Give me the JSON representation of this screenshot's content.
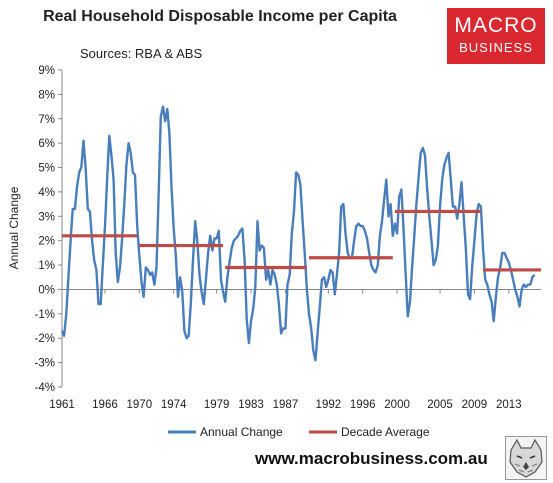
{
  "header": {
    "title": "Real Household Disposable Income per Capita",
    "subtitle": "Sources: RBA & ABS"
  },
  "logo": {
    "line1": "MACRO",
    "line2": "BUSINESS"
  },
  "footer": {
    "website": "www.macrobusiness.com.au"
  },
  "colors": {
    "line": "#4a7ebb",
    "average": "#be4b48",
    "logo_bg": "#d9282f"
  },
  "chart_data": {
    "type": "line",
    "title": "Real Household Disposable Income per Capita",
    "subtitle": "Sources: RBA & ABS",
    "xlabel": "",
    "ylabel": "Annual Change",
    "xlim": [
      1961,
      2016.75
    ],
    "ylim": [
      -4,
      9
    ],
    "y_ticks": [
      "-4%",
      "-3%",
      "-2%",
      "-1%",
      "0%",
      "1%",
      "2%",
      "3%",
      "4%",
      "5%",
      "6%",
      "7%",
      "8%",
      "9%"
    ],
    "y_tick_values": [
      -4,
      -3,
      -2,
      -1,
      0,
      1,
      2,
      3,
      4,
      5,
      6,
      7,
      8,
      9
    ],
    "x_ticks": [
      "1961",
      "1966",
      "1970",
      "1974",
      "1979",
      "1983",
      "1987",
      "1992",
      "1996",
      "2000",
      "2005",
      "2009",
      "2013"
    ],
    "x_tick_values": [
      1961,
      1966,
      1970,
      1974,
      1979,
      1983,
      1987,
      1992,
      1996,
      2000,
      2005,
      2009,
      2013
    ],
    "legend_position": "bottom",
    "grid": false,
    "series": [
      {
        "name": "Annual Change",
        "points": [
          [
            1961.0,
            -1.7
          ],
          [
            1961.25,
            -1.9
          ],
          [
            1961.5,
            -1.0
          ],
          [
            1961.75,
            0.5
          ],
          [
            1962.0,
            2.0
          ],
          [
            1962.25,
            3.3
          ],
          [
            1962.5,
            3.3
          ],
          [
            1962.75,
            4.2
          ],
          [
            1963.0,
            4.8
          ],
          [
            1963.25,
            5.0
          ],
          [
            1963.5,
            6.1
          ],
          [
            1963.75,
            5.0
          ],
          [
            1964.0,
            3.3
          ],
          [
            1964.25,
            3.2
          ],
          [
            1964.5,
            2.0
          ],
          [
            1964.75,
            1.2
          ],
          [
            1965.0,
            0.8
          ],
          [
            1965.25,
            -0.6
          ],
          [
            1965.5,
            -0.6
          ],
          [
            1965.75,
            1.0
          ],
          [
            1966.0,
            2.6
          ],
          [
            1966.25,
            4.5
          ],
          [
            1966.5,
            6.3
          ],
          [
            1966.75,
            5.5
          ],
          [
            1967.0,
            4.5
          ],
          [
            1967.25,
            1.5
          ],
          [
            1967.5,
            0.3
          ],
          [
            1967.75,
            0.9
          ],
          [
            1968.0,
            2.1
          ],
          [
            1968.25,
            3.5
          ],
          [
            1968.5,
            5.1
          ],
          [
            1968.75,
            6.0
          ],
          [
            1969.0,
            5.6
          ],
          [
            1969.25,
            4.8
          ],
          [
            1969.5,
            4.7
          ],
          [
            1969.75,
            2.6
          ],
          [
            1970.0,
            1.4
          ],
          [
            1970.25,
            0.3
          ],
          [
            1970.5,
            -0.3
          ],
          [
            1970.75,
            0.9
          ],
          [
            1971.0,
            0.8
          ],
          [
            1971.25,
            0.6
          ],
          [
            1971.5,
            0.7
          ],
          [
            1971.75,
            0.2
          ],
          [
            1972.0,
            0.9
          ],
          [
            1972.25,
            4.0
          ],
          [
            1972.5,
            7.1
          ],
          [
            1972.75,
            7.5
          ],
          [
            1973.0,
            6.9
          ],
          [
            1973.25,
            7.4
          ],
          [
            1973.5,
            6.4
          ],
          [
            1973.75,
            4.2
          ],
          [
            1974.0,
            2.5
          ],
          [
            1974.25,
            1.4
          ],
          [
            1974.5,
            -0.3
          ],
          [
            1974.75,
            0.5
          ],
          [
            1975.0,
            -0.1
          ],
          [
            1975.25,
            -1.7
          ],
          [
            1975.5,
            -2.0
          ],
          [
            1975.75,
            -1.9
          ],
          [
            1976.0,
            -0.5
          ],
          [
            1976.25,
            1.2
          ],
          [
            1976.5,
            2.8
          ],
          [
            1976.75,
            2.0
          ],
          [
            1977.0,
            0.6
          ],
          [
            1977.25,
            -0.1
          ],
          [
            1977.5,
            -0.6
          ],
          [
            1977.75,
            0.4
          ],
          [
            1978.0,
            1.5
          ],
          [
            1978.25,
            2.2
          ],
          [
            1978.5,
            1.6
          ],
          [
            1978.75,
            2.1
          ],
          [
            1979.0,
            2.1
          ],
          [
            1979.25,
            2.4
          ],
          [
            1979.5,
            0.4
          ],
          [
            1979.75,
            -0.1
          ],
          [
            1980.0,
            -0.5
          ],
          [
            1980.25,
            0.5
          ],
          [
            1980.5,
            1.1
          ],
          [
            1980.75,
            1.7
          ],
          [
            1981.0,
            2.0
          ],
          [
            1981.25,
            2.1
          ],
          [
            1981.5,
            2.2
          ],
          [
            1981.75,
            2.4
          ],
          [
            1982.0,
            2.5
          ],
          [
            1982.25,
            1.2
          ],
          [
            1982.5,
            -1.2
          ],
          [
            1982.75,
            -2.2
          ],
          [
            1983.0,
            -1.3
          ],
          [
            1983.25,
            -0.8
          ],
          [
            1983.5,
            0.1
          ],
          [
            1983.75,
            2.8
          ],
          [
            1984.0,
            1.6
          ],
          [
            1984.25,
            1.8
          ],
          [
            1984.5,
            1.7
          ],
          [
            1984.75,
            0.4
          ],
          [
            1985.0,
            0.8
          ],
          [
            1985.25,
            0.2
          ],
          [
            1985.5,
            0.8
          ],
          [
            1985.75,
            0.6
          ],
          [
            1986.0,
            0.2
          ],
          [
            1986.25,
            -0.6
          ],
          [
            1986.5,
            -1.8
          ],
          [
            1986.75,
            -1.6
          ],
          [
            1987.0,
            -1.6
          ],
          [
            1987.25,
            0.2
          ],
          [
            1987.5,
            0.6
          ],
          [
            1987.75,
            2.3
          ],
          [
            1988.0,
            3.2
          ],
          [
            1988.25,
            4.8
          ],
          [
            1988.5,
            4.7
          ],
          [
            1988.75,
            4.3
          ],
          [
            1989.0,
            2.8
          ],
          [
            1989.25,
            1.5
          ],
          [
            1989.5,
            0.0
          ],
          [
            1989.75,
            -1.0
          ],
          [
            1990.0,
            -1.6
          ],
          [
            1990.25,
            -2.5
          ],
          [
            1990.5,
            -2.9
          ],
          [
            1990.75,
            -1.8
          ],
          [
            1991.0,
            -0.7
          ],
          [
            1991.25,
            0.4
          ],
          [
            1991.5,
            0.5
          ],
          [
            1991.75,
            0.1
          ],
          [
            1992.0,
            0.4
          ],
          [
            1992.25,
            0.8
          ],
          [
            1992.5,
            0.7
          ],
          [
            1992.75,
            -0.2
          ],
          [
            1993.0,
            0.6
          ],
          [
            1993.25,
            1.5
          ],
          [
            1993.5,
            3.4
          ],
          [
            1993.75,
            3.5
          ],
          [
            1994.0,
            2.3
          ],
          [
            1994.25,
            1.5
          ],
          [
            1994.5,
            1.3
          ],
          [
            1994.75,
            1.3
          ],
          [
            1995.0,
            2.0
          ],
          [
            1995.25,
            2.6
          ],
          [
            1995.5,
            2.7
          ],
          [
            1995.75,
            2.6
          ],
          [
            1996.0,
            2.6
          ],
          [
            1996.25,
            2.4
          ],
          [
            1996.5,
            2.1
          ],
          [
            1996.75,
            1.5
          ],
          [
            1997.0,
            1.0
          ],
          [
            1997.25,
            0.8
          ],
          [
            1997.5,
            0.7
          ],
          [
            1997.75,
            1.0
          ],
          [
            1998.0,
            2.2
          ],
          [
            1998.25,
            2.8
          ],
          [
            1998.5,
            3.7
          ],
          [
            1998.75,
            4.5
          ],
          [
            1999.0,
            3.0
          ],
          [
            1999.25,
            3.5
          ],
          [
            1999.5,
            2.2
          ],
          [
            1999.75,
            2.7
          ],
          [
            2000.0,
            2.3
          ],
          [
            2000.25,
            3.8
          ],
          [
            2000.5,
            4.1
          ],
          [
            2000.75,
            2.5
          ],
          [
            2001.0,
            0.6
          ],
          [
            2001.25,
            -1.1
          ],
          [
            2001.5,
            -0.5
          ],
          [
            2001.75,
            0.9
          ],
          [
            2002.0,
            2.2
          ],
          [
            2002.25,
            3.5
          ],
          [
            2002.5,
            4.6
          ],
          [
            2002.75,
            5.6
          ],
          [
            2003.0,
            5.8
          ],
          [
            2003.25,
            5.5
          ],
          [
            2003.5,
            4.1
          ],
          [
            2003.75,
            3.0
          ],
          [
            2004.0,
            2.0
          ],
          [
            2004.25,
            1.0
          ],
          [
            2004.5,
            1.2
          ],
          [
            2004.75,
            1.8
          ],
          [
            2005.0,
            3.4
          ],
          [
            2005.25,
            4.5
          ],
          [
            2005.5,
            5.1
          ],
          [
            2005.75,
            5.4
          ],
          [
            2006.0,
            5.6
          ],
          [
            2006.25,
            4.5
          ],
          [
            2006.5,
            3.4
          ],
          [
            2006.75,
            3.4
          ],
          [
            2007.0,
            2.9
          ],
          [
            2007.25,
            3.5
          ],
          [
            2007.5,
            4.4
          ],
          [
            2007.75,
            3.0
          ],
          [
            2008.0,
            1.7
          ],
          [
            2008.25,
            -0.2
          ],
          [
            2008.5,
            -0.4
          ],
          [
            2008.75,
            1.0
          ],
          [
            2009.0,
            2.0
          ],
          [
            2009.25,
            3.1
          ],
          [
            2009.5,
            3.5
          ],
          [
            2009.75,
            3.4
          ],
          [
            2010.0,
            1.7
          ],
          [
            2010.25,
            0.4
          ],
          [
            2010.5,
            0.2
          ],
          [
            2010.75,
            -0.2
          ],
          [
            2011.0,
            -0.5
          ],
          [
            2011.25,
            -1.3
          ],
          [
            2011.5,
            -0.3
          ],
          [
            2011.75,
            0.5
          ],
          [
            2012.0,
            0.9
          ],
          [
            2012.25,
            1.5
          ],
          [
            2012.5,
            1.5
          ],
          [
            2012.75,
            1.3
          ],
          [
            2013.0,
            1.1
          ],
          [
            2013.25,
            0.8
          ],
          [
            2013.5,
            0.4
          ],
          [
            2013.75,
            0.0
          ],
          [
            2014.0,
            -0.3
          ],
          [
            2014.25,
            -0.7
          ],
          [
            2014.5,
            0.0
          ],
          [
            2014.75,
            0.2
          ],
          [
            2015.0,
            0.1
          ],
          [
            2015.25,
            0.2
          ],
          [
            2015.5,
            0.2
          ],
          [
            2015.75,
            0.5
          ],
          [
            2016.0,
            0.6
          ]
        ]
      },
      {
        "name": "Decade Average",
        "segments": [
          {
            "x": [
              1961.0,
              1969.75
            ],
            "y": 2.2
          },
          {
            "x": [
              1970.0,
              1979.75
            ],
            "y": 1.8
          },
          {
            "x": [
              1980.0,
              1989.5
            ],
            "y": 0.9
          },
          {
            "x": [
              1989.75,
              1999.5
            ],
            "y": 1.3
          },
          {
            "x": [
              1999.75,
              2009.75
            ],
            "y": 3.2
          },
          {
            "x": [
              2010.0,
              2016.75
            ],
            "y": 0.8
          }
        ]
      }
    ]
  }
}
